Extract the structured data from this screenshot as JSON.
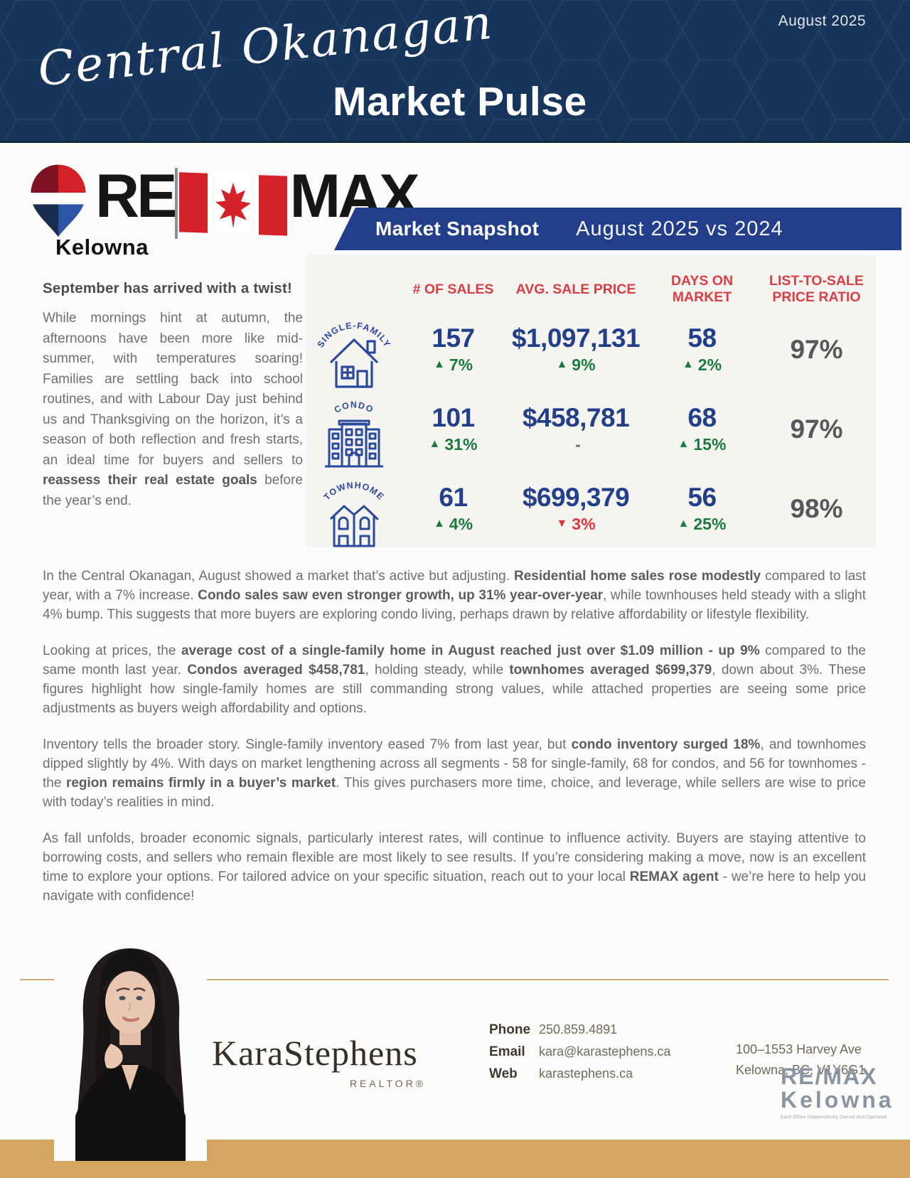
{
  "header": {
    "region": "Central Okanagan",
    "title": "Market Pulse",
    "date": "August 2025"
  },
  "logo": {
    "re": "RE",
    "max": "MAX",
    "city": "Kelowna"
  },
  "snapshot": {
    "banner_title": "Market Snapshot",
    "banner_subtitle": "August 2025 vs 2024",
    "columns": [
      "# OF SALES",
      "AVG. SALE PRICE",
      "DAYS ON MARKET",
      "LIST-TO-SALE PRICE RATIO"
    ],
    "rows": [
      {
        "label": "SINGLE-FAMILY",
        "icon": "single-family-house-icon",
        "sales": "157",
        "sales_arrow": "▲",
        "sales_change": "7%",
        "sales_tone": "up",
        "price": "$1,097,131",
        "price_arrow": "▲",
        "price_change": "9%",
        "price_tone": "up",
        "days": "58",
        "days_arrow": "▲",
        "days_change": "2%",
        "days_tone": "up",
        "ratio": "97%"
      },
      {
        "label": "CONDO",
        "icon": "condo-building-icon",
        "sales": "101",
        "sales_arrow": "▲",
        "sales_change": "31%",
        "sales_tone": "up",
        "price": "$458,781",
        "price_arrow": "",
        "price_change": "-",
        "price_tone": "flat",
        "days": "68",
        "days_arrow": "▲",
        "days_change": "15%",
        "days_tone": "up",
        "ratio": "97%"
      },
      {
        "label": "TOWNHOME",
        "icon": "townhome-icon",
        "sales": "61",
        "sales_arrow": "▲",
        "sales_change": "4%",
        "sales_tone": "up",
        "price": "$699,379",
        "price_arrow": "▼",
        "price_change": "3%",
        "price_tone": "down",
        "days": "56",
        "days_arrow": "▲",
        "days_change": "25%",
        "days_tone": "up",
        "ratio": "98%"
      }
    ]
  },
  "intro": {
    "heading": "September has arrived with a twist!",
    "body": [
      {
        "t": "While mornings hint at autumn, the afternoons have been more like mid-summer, with temperatures soaring! Families are settling back into school routines, and with Labour Day just behind us and Thanksgiving on the horizon, it’s a season of both reflection and fresh starts, an ideal time for buyers and sellers to ",
        "b": false
      },
      {
        "t": "reassess their real estate goals",
        "b": true
      },
      {
        "t": " before the year’s end.",
        "b": false
      }
    ]
  },
  "article": {
    "paragraphs": [
      [
        {
          "t": "In the Central Okanagan, August showed a market that’s active but adjusting. ",
          "b": false
        },
        {
          "t": "Residential home sales rose modestly",
          "b": true
        },
        {
          "t": " compared to last year, with a 7% increase. ",
          "b": false
        },
        {
          "t": "Condo sales saw even stronger growth, up 31% year-over-year",
          "b": true
        },
        {
          "t": ", while townhouses held steady with a slight 4% bump. This suggests that more buyers are exploring condo living, perhaps drawn by relative affordability or lifestyle flexibility.",
          "b": false
        }
      ],
      [
        {
          "t": "Looking at prices, the ",
          "b": false
        },
        {
          "t": "average cost of a single-family home in August reached just over $1.09 million - up 9%",
          "b": true
        },
        {
          "t": " compared to the same month last year. ",
          "b": false
        },
        {
          "t": "Condos averaged $458,781",
          "b": true
        },
        {
          "t": ", holding steady, while ",
          "b": false
        },
        {
          "t": "townhomes averaged $699,379",
          "b": true
        },
        {
          "t": ", down about 3%. These figures highlight how single-family homes are still commanding strong values, while attached properties are seeing some price adjustments as buyers weigh affordability and options.",
          "b": false
        }
      ],
      [
        {
          "t": "Inventory tells the broader story. Single-family inventory eased 7% from last year, but ",
          "b": false
        },
        {
          "t": "condo inventory surged 18%",
          "b": true
        },
        {
          "t": ", and townhomes dipped slightly by 4%. With days on market lengthening across all segments - 58 for single-family, 68 for condos, and 56 for townhomes - the ",
          "b": false
        },
        {
          "t": "region remains firmly in a buyer’s market",
          "b": true
        },
        {
          "t": ". This gives purchasers more time, choice, and leverage, while sellers are wise to price with today’s realities in mind.",
          "b": false
        }
      ],
      [
        {
          "t": "As fall unfolds, broader economic signals, particularly interest rates, will continue to influence activity. Buyers are staying attentive to borrowing costs, and sellers who remain flexible are most likely to see results. If you’re considering making a move, now is an excellent time to explore your options. For tailored advice on your specific situation, reach out to your local ",
          "b": false
        },
        {
          "t": "REMAX agent",
          "b": true
        },
        {
          "t": " - we’re here to help you navigate with confidence!",
          "b": false
        }
      ]
    ]
  },
  "footer": {
    "agent_name": "KaraStephens",
    "agent_title": "REALTOR®",
    "contact": [
      {
        "label": "Phone",
        "value": "250.859.4891"
      },
      {
        "label": "Email",
        "value": "kara@karastephens.ca"
      },
      {
        "label": "Web",
        "value": "karastephens.ca"
      }
    ],
    "address_line1": "100–1553 Harvey Ave",
    "address_line2": "Kelowna, BC, V1Y6G1",
    "brokerage_line1": "RE/MAX",
    "brokerage_line2": "Kelowna",
    "brokerage_disclaimer": "Each Office Independently Owned and Operated."
  },
  "colors": {
    "header_navy": "#17345a",
    "banner_blue": "#233e8b",
    "accent_red": "#d63f44",
    "value_navy": "#223f8a",
    "up_green": "#1b7a3d",
    "down_red": "#e03438",
    "ratio_gray": "#58585a",
    "footer_gold": "#d5a65f"
  }
}
